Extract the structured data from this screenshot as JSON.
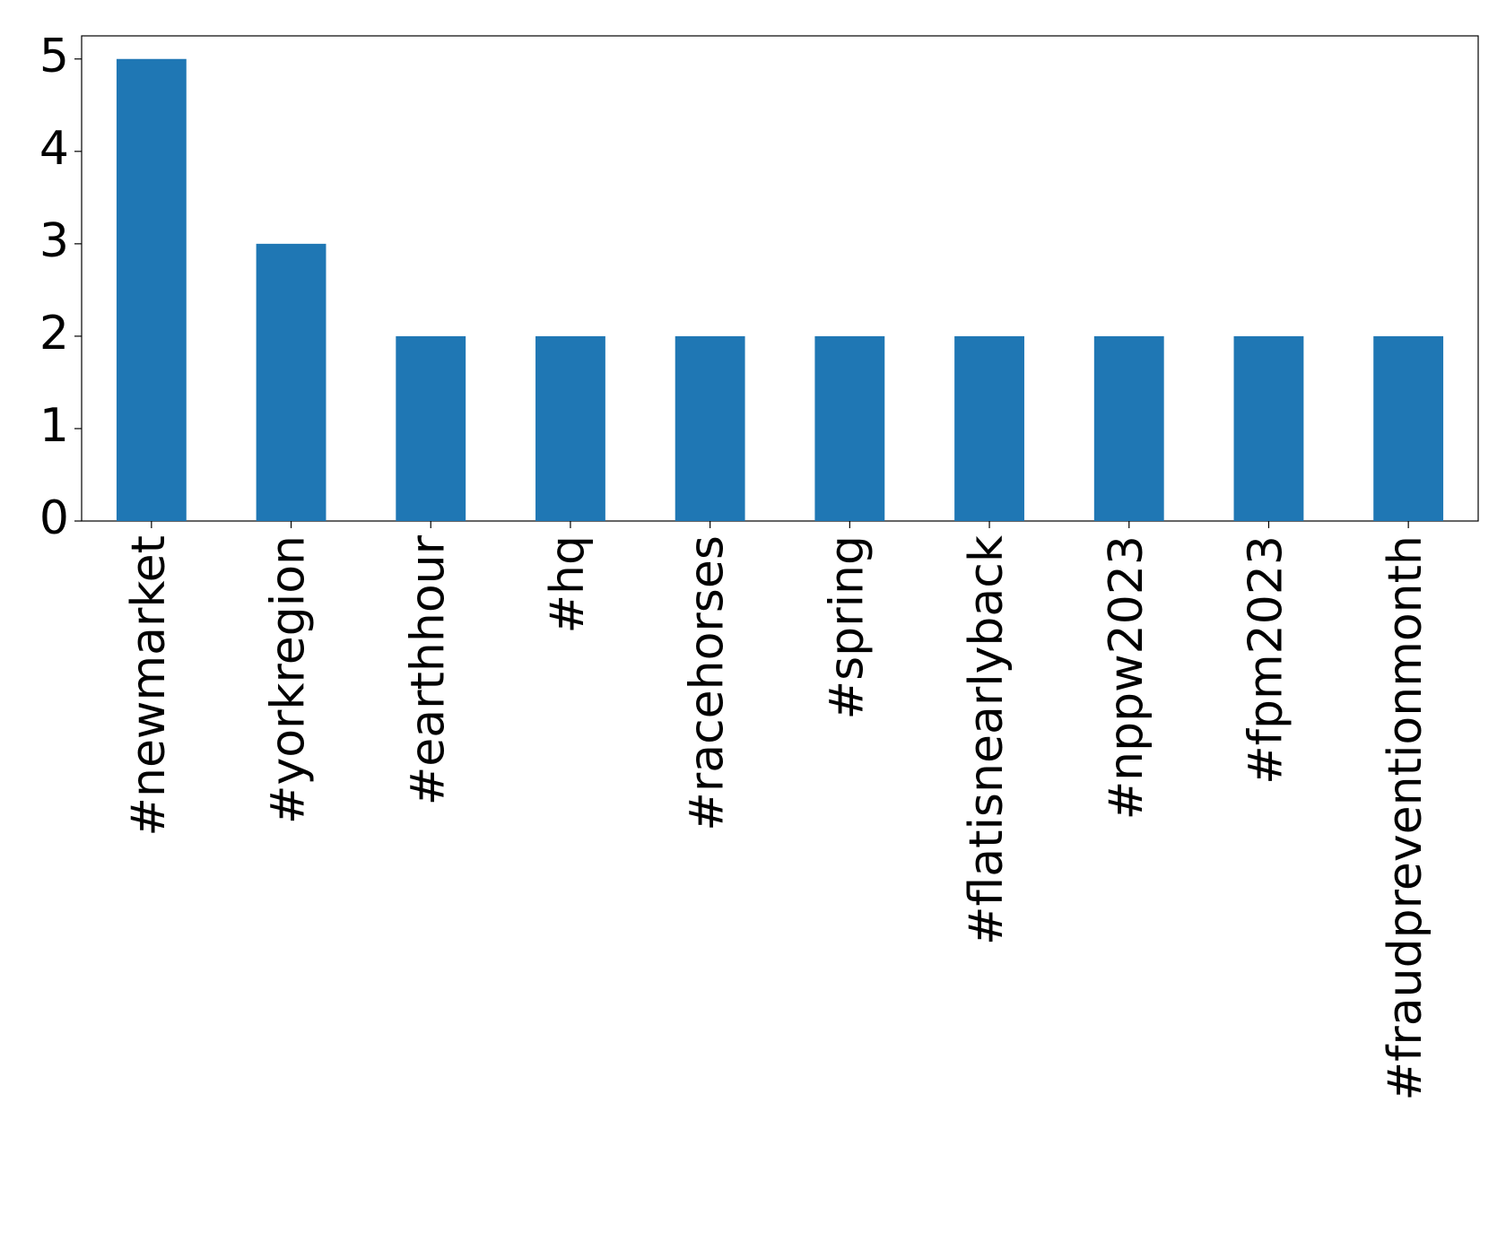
{
  "chart_data": {
    "type": "bar",
    "categories": [
      "#newmarket",
      "#yorkregion",
      "#earthhour",
      "#hq",
      "#racehorses",
      "#spring",
      "#flatisnearlyback",
      "#nppw2023",
      "#fpm2023",
      "#fraudpreventionmonth"
    ],
    "values": [
      5,
      3,
      2,
      2,
      2,
      2,
      2,
      2,
      2,
      2
    ],
    "color": "#1f77b4",
    "ylim": [
      0,
      5.25
    ],
    "yticks": [
      0,
      1,
      2,
      3,
      4,
      5
    ],
    "grid": false
  }
}
